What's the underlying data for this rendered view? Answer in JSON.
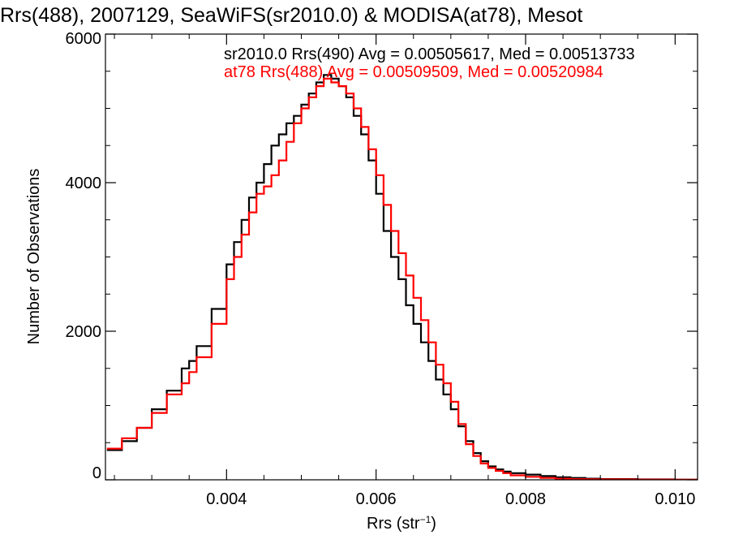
{
  "chart_data": {
    "type": "line",
    "title": "Rrs(488), 2007129, SeaWiFS(sr2010.0) & MODISA(at78), Mesot",
    "xlabel": "Rrs (str",
    "xlabel_sup": "−1",
    "xlabel_close": ")",
    "ylabel": "Number of Observations",
    "xlim": [
      0.00238,
      0.0103
    ],
    "ylim": [
      0,
      6000
    ],
    "xticks": [
      0.004,
      0.006,
      0.008,
      0.01
    ],
    "xtick_labels": [
      "0.004",
      "0.006",
      "0.008",
      "0.010"
    ],
    "yticks": [
      0,
      2000,
      4000,
      6000
    ],
    "ytick_labels": [
      "0",
      "2000",
      "4000",
      "6000"
    ],
    "grid": false,
    "legend_position": "top-right",
    "step": true,
    "series": [
      {
        "name": "sr2010.0 Rrs(490)",
        "label": "sr2010.0 Rrs(490) Avg = 0.00505617, Med = 0.00513733",
        "color": "#000000",
        "x": [
          0.0024,
          0.0026,
          0.0028,
          0.003,
          0.0032,
          0.0034,
          0.0035,
          0.0036,
          0.0038,
          0.004,
          0.0041,
          0.0042,
          0.0043,
          0.0044,
          0.0045,
          0.0046,
          0.0047,
          0.0048,
          0.0049,
          0.005,
          0.0051,
          0.0052,
          0.0053,
          0.0054,
          0.0055,
          0.0056,
          0.0057,
          0.0058,
          0.0059,
          0.006,
          0.0061,
          0.0062,
          0.0063,
          0.0064,
          0.0065,
          0.0066,
          0.0067,
          0.0068,
          0.0069,
          0.007,
          0.0071,
          0.0072,
          0.0073,
          0.0074,
          0.0075,
          0.0076,
          0.0077,
          0.0078,
          0.008,
          0.0082,
          0.0084,
          0.0086,
          0.0088,
          0.009,
          0.0095,
          0.01,
          0.0103
        ],
        "y": [
          400,
          520,
          700,
          950,
          1200,
          1500,
          1600,
          1800,
          2300,
          2900,
          3200,
          3500,
          3800,
          4000,
          4250,
          4500,
          4650,
          4800,
          4900,
          5050,
          5200,
          5350,
          5450,
          5400,
          5300,
          5150,
          4900,
          4650,
          4300,
          3850,
          3350,
          3000,
          2700,
          2350,
          2100,
          1850,
          1600,
          1350,
          1150,
          950,
          720,
          520,
          360,
          250,
          180,
          140,
          110,
          90,
          70,
          50,
          35,
          25,
          15,
          10,
          5,
          2,
          0
        ]
      },
      {
        "name": "at78 Rrs(488)",
        "label": "at78 Rrs(488) Avg = 0.00509509, Med = 0.00520984",
        "color": "#ff0000",
        "x": [
          0.0024,
          0.0026,
          0.0028,
          0.003,
          0.0032,
          0.0034,
          0.0035,
          0.0036,
          0.0038,
          0.004,
          0.0041,
          0.0042,
          0.0043,
          0.0044,
          0.0045,
          0.0046,
          0.0047,
          0.0048,
          0.0049,
          0.005,
          0.0051,
          0.0052,
          0.0053,
          0.0054,
          0.0055,
          0.0056,
          0.0057,
          0.0058,
          0.0059,
          0.006,
          0.0061,
          0.0062,
          0.0063,
          0.0064,
          0.0065,
          0.0066,
          0.0067,
          0.0068,
          0.0069,
          0.007,
          0.0071,
          0.0072,
          0.0073,
          0.0074,
          0.0075,
          0.0076,
          0.0077,
          0.0078,
          0.008,
          0.0082,
          0.0084,
          0.0086,
          0.0088,
          0.009,
          0.0095,
          0.01,
          0.0103
        ],
        "y": [
          420,
          560,
          700,
          900,
          1150,
          1300,
          1450,
          1650,
          2100,
          2700,
          3000,
          3300,
          3600,
          3850,
          3950,
          4100,
          4300,
          4550,
          4800,
          5000,
          5150,
          5300,
          5400,
          5350,
          5300,
          5200,
          5000,
          4750,
          4450,
          4100,
          3700,
          3350,
          3050,
          2750,
          2450,
          2150,
          1850,
          1550,
          1300,
          1050,
          750,
          480,
          320,
          220,
          160,
          120,
          90,
          60,
          40,
          25,
          15,
          10,
          8,
          5,
          3,
          1,
          0
        ]
      }
    ]
  },
  "colors": {
    "axis": "#000000",
    "background": "#ffffff"
  }
}
